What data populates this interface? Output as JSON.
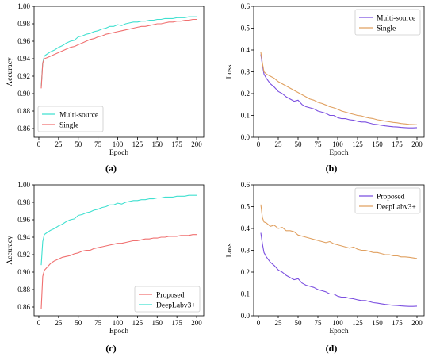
{
  "figure": {
    "panel_labels": [
      "(a)",
      "(b)",
      "(c)",
      "(d)"
    ]
  },
  "chart_data": [
    {
      "type": "line",
      "panel": "(a)",
      "xlabel": "Epoch",
      "ylabel": "Accuracy",
      "xlim": [
        -6,
        209
      ],
      "ylim": [
        0.85,
        1.0
      ],
      "xticks": [
        0,
        25,
        50,
        75,
        100,
        125,
        150,
        175,
        200
      ],
      "yticks": [
        0.86,
        0.88,
        0.9,
        0.92,
        0.94,
        0.96,
        0.98,
        1.0
      ],
      "ytick_labels": [
        "0.86",
        "0.88",
        "0.90",
        "0.92",
        "0.94",
        "0.96",
        "0.98",
        "1.00"
      ],
      "legend": "bottom-left",
      "series": [
        {
          "name": "Multi-source",
          "color": "#40e0d0",
          "x": [
            3,
            5,
            7,
            10,
            15,
            20,
            25,
            30,
            35,
            40,
            45,
            50,
            55,
            60,
            65,
            70,
            75,
            80,
            85,
            90,
            95,
            100,
            105,
            110,
            115,
            120,
            125,
            130,
            135,
            140,
            145,
            150,
            155,
            160,
            165,
            170,
            175,
            180,
            185,
            190,
            195,
            200
          ],
          "y": [
            0.908,
            0.935,
            0.943,
            0.945,
            0.948,
            0.95,
            0.953,
            0.955,
            0.958,
            0.96,
            0.961,
            0.965,
            0.966,
            0.968,
            0.969,
            0.971,
            0.972,
            0.974,
            0.975,
            0.977,
            0.977,
            0.979,
            0.978,
            0.98,
            0.981,
            0.982,
            0.982,
            0.983,
            0.983,
            0.984,
            0.984,
            0.985,
            0.985,
            0.986,
            0.986,
            0.986,
            0.987,
            0.987,
            0.987,
            0.988,
            0.988,
            0.988
          ]
        },
        {
          "name": "Single",
          "color": "#f07070",
          "x": [
            3,
            5,
            7,
            10,
            15,
            20,
            25,
            30,
            35,
            40,
            45,
            50,
            55,
            60,
            65,
            70,
            75,
            80,
            85,
            90,
            95,
            100,
            105,
            110,
            115,
            120,
            125,
            130,
            135,
            140,
            145,
            150,
            155,
            160,
            165,
            170,
            175,
            180,
            185,
            190,
            195,
            200
          ],
          "y": [
            0.906,
            0.935,
            0.94,
            0.941,
            0.943,
            0.945,
            0.947,
            0.949,
            0.951,
            0.953,
            0.954,
            0.956,
            0.958,
            0.96,
            0.962,
            0.963,
            0.965,
            0.966,
            0.968,
            0.969,
            0.97,
            0.971,
            0.972,
            0.973,
            0.974,
            0.975,
            0.976,
            0.977,
            0.977,
            0.978,
            0.979,
            0.98,
            0.98,
            0.981,
            0.982,
            0.982,
            0.983,
            0.983,
            0.984,
            0.984,
            0.985,
            0.985
          ]
        }
      ]
    },
    {
      "type": "line",
      "panel": "(b)",
      "xlabel": "Epoch",
      "ylabel": "Loss",
      "xlim": [
        -6,
        209
      ],
      "ylim": [
        0.0,
        0.6
      ],
      "xticks": [
        0,
        25,
        50,
        75,
        100,
        125,
        150,
        175,
        200
      ],
      "yticks": [
        0.0,
        0.1,
        0.2,
        0.3,
        0.4,
        0.5,
        0.6
      ],
      "ytick_labels": [
        "0.0",
        "0.1",
        "0.2",
        "0.3",
        "0.4",
        "0.5",
        "0.6"
      ],
      "legend": "top-right",
      "series": [
        {
          "name": "Multi-source",
          "color": "#7b4fe0",
          "x": [
            3,
            5,
            7,
            10,
            15,
            20,
            25,
            30,
            35,
            40,
            45,
            50,
            55,
            60,
            65,
            70,
            75,
            80,
            85,
            90,
            95,
            100,
            105,
            110,
            115,
            120,
            125,
            130,
            135,
            140,
            145,
            150,
            155,
            160,
            165,
            170,
            175,
            180,
            185,
            190,
            195,
            200
          ],
          "y": [
            0.38,
            0.33,
            0.29,
            0.27,
            0.245,
            0.23,
            0.21,
            0.2,
            0.185,
            0.175,
            0.165,
            0.17,
            0.15,
            0.14,
            0.135,
            0.13,
            0.12,
            0.115,
            0.11,
            0.1,
            0.1,
            0.09,
            0.085,
            0.085,
            0.08,
            0.078,
            0.073,
            0.07,
            0.07,
            0.065,
            0.06,
            0.058,
            0.055,
            0.052,
            0.05,
            0.048,
            0.047,
            0.045,
            0.044,
            0.043,
            0.043,
            0.044
          ]
        },
        {
          "name": "Single",
          "color": "#e0a060",
          "x": [
            3,
            5,
            7,
            10,
            15,
            20,
            25,
            30,
            35,
            40,
            45,
            50,
            55,
            60,
            65,
            70,
            75,
            80,
            85,
            90,
            95,
            100,
            105,
            110,
            115,
            120,
            125,
            130,
            135,
            140,
            145,
            150,
            155,
            160,
            165,
            170,
            175,
            180,
            185,
            190,
            195,
            200
          ],
          "y": [
            0.39,
            0.34,
            0.3,
            0.29,
            0.28,
            0.27,
            0.255,
            0.245,
            0.235,
            0.225,
            0.215,
            0.205,
            0.195,
            0.185,
            0.175,
            0.17,
            0.16,
            0.155,
            0.148,
            0.14,
            0.135,
            0.128,
            0.12,
            0.115,
            0.11,
            0.105,
            0.1,
            0.098,
            0.092,
            0.088,
            0.085,
            0.08,
            0.077,
            0.074,
            0.071,
            0.068,
            0.066,
            0.063,
            0.061,
            0.059,
            0.058,
            0.057
          ]
        }
      ]
    },
    {
      "type": "line",
      "panel": "(c)",
      "xlabel": "Epoch",
      "ylabel": "Accuracy",
      "xlim": [
        -6,
        209
      ],
      "ylim": [
        0.85,
        1.0
      ],
      "xticks": [
        0,
        25,
        50,
        75,
        100,
        125,
        150,
        175,
        200
      ],
      "yticks": [
        0.86,
        0.88,
        0.9,
        0.92,
        0.94,
        0.96,
        0.98,
        1.0
      ],
      "ytick_labels": [
        "0.86",
        "0.88",
        "0.90",
        "0.92",
        "0.94",
        "0.96",
        "0.98",
        "1.00"
      ],
      "legend": "bottom-right",
      "series": [
        {
          "name": "Proposed",
          "color": "#f07070",
          "x": [
            3,
            5,
            7,
            10,
            15,
            20,
            25,
            30,
            35,
            40,
            45,
            50,
            55,
            60,
            65,
            70,
            75,
            80,
            85,
            90,
            95,
            100,
            105,
            110,
            115,
            120,
            125,
            130,
            135,
            140,
            145,
            150,
            155,
            160,
            165,
            170,
            175,
            180,
            185,
            190,
            195,
            200
          ],
          "y": [
            0.858,
            0.895,
            0.902,
            0.905,
            0.91,
            0.913,
            0.915,
            0.917,
            0.918,
            0.919,
            0.921,
            0.922,
            0.924,
            0.925,
            0.925,
            0.927,
            0.928,
            0.929,
            0.93,
            0.931,
            0.932,
            0.933,
            0.933,
            0.934,
            0.935,
            0.936,
            0.936,
            0.937,
            0.938,
            0.938,
            0.939,
            0.939,
            0.94,
            0.94,
            0.941,
            0.941,
            0.941,
            0.942,
            0.942,
            0.942,
            0.943,
            0.943
          ]
        },
        {
          "name": "DeepLabv3+",
          "color": "#40e0d0",
          "x": [
            3,
            5,
            7,
            10,
            15,
            20,
            25,
            30,
            35,
            40,
            45,
            50,
            55,
            60,
            65,
            70,
            75,
            80,
            85,
            90,
            95,
            100,
            105,
            110,
            115,
            120,
            125,
            130,
            135,
            140,
            145,
            150,
            155,
            160,
            165,
            170,
            175,
            180,
            185,
            190,
            195,
            200
          ],
          "y": [
            0.908,
            0.935,
            0.943,
            0.945,
            0.948,
            0.95,
            0.953,
            0.955,
            0.958,
            0.96,
            0.961,
            0.965,
            0.966,
            0.968,
            0.969,
            0.971,
            0.972,
            0.974,
            0.975,
            0.977,
            0.977,
            0.979,
            0.978,
            0.98,
            0.981,
            0.982,
            0.982,
            0.983,
            0.983,
            0.984,
            0.984,
            0.985,
            0.985,
            0.986,
            0.986,
            0.986,
            0.987,
            0.987,
            0.987,
            0.988,
            0.988,
            0.988
          ]
        }
      ]
    },
    {
      "type": "line",
      "panel": "(d)",
      "xlabel": "Epoch",
      "ylabel": "Loss",
      "xlim": [
        -6,
        209
      ],
      "ylim": [
        0.0,
        0.6
      ],
      "xticks": [
        0,
        25,
        50,
        75,
        100,
        125,
        150,
        175,
        200
      ],
      "yticks": [
        0.0,
        0.1,
        0.2,
        0.3,
        0.4,
        0.5,
        0.6
      ],
      "ytick_labels": [
        "0.0",
        "0.1",
        "0.2",
        "0.3",
        "0.4",
        "0.5",
        "0.6"
      ],
      "legend": "top-right",
      "series": [
        {
          "name": "Proposed",
          "color": "#7b4fe0",
          "x": [
            3,
            5,
            7,
            10,
            15,
            20,
            25,
            30,
            35,
            40,
            45,
            50,
            55,
            60,
            65,
            70,
            75,
            80,
            85,
            90,
            95,
            100,
            105,
            110,
            115,
            120,
            125,
            130,
            135,
            140,
            145,
            150,
            155,
            160,
            165,
            170,
            175,
            180,
            185,
            190,
            195,
            200
          ],
          "y": [
            0.38,
            0.33,
            0.29,
            0.27,
            0.245,
            0.23,
            0.21,
            0.2,
            0.185,
            0.175,
            0.165,
            0.17,
            0.15,
            0.14,
            0.135,
            0.13,
            0.12,
            0.115,
            0.11,
            0.1,
            0.1,
            0.09,
            0.085,
            0.085,
            0.08,
            0.078,
            0.073,
            0.07,
            0.07,
            0.065,
            0.06,
            0.058,
            0.055,
            0.052,
            0.05,
            0.048,
            0.047,
            0.045,
            0.044,
            0.043,
            0.043,
            0.044
          ]
        },
        {
          "name": "DeepLabv3+",
          "color": "#e0a060",
          "x": [
            3,
            5,
            7,
            10,
            15,
            20,
            25,
            30,
            35,
            40,
            45,
            50,
            55,
            60,
            65,
            70,
            75,
            80,
            85,
            90,
            95,
            100,
            105,
            110,
            115,
            120,
            125,
            130,
            135,
            140,
            145,
            150,
            155,
            160,
            165,
            170,
            175,
            180,
            185,
            190,
            195,
            200
          ],
          "y": [
            0.51,
            0.45,
            0.43,
            0.425,
            0.41,
            0.415,
            0.4,
            0.405,
            0.39,
            0.39,
            0.385,
            0.37,
            0.365,
            0.36,
            0.355,
            0.35,
            0.345,
            0.34,
            0.335,
            0.34,
            0.33,
            0.325,
            0.32,
            0.315,
            0.31,
            0.315,
            0.305,
            0.3,
            0.3,
            0.295,
            0.29,
            0.29,
            0.285,
            0.28,
            0.28,
            0.275,
            0.275,
            0.27,
            0.27,
            0.268,
            0.265,
            0.262
          ]
        }
      ]
    }
  ]
}
